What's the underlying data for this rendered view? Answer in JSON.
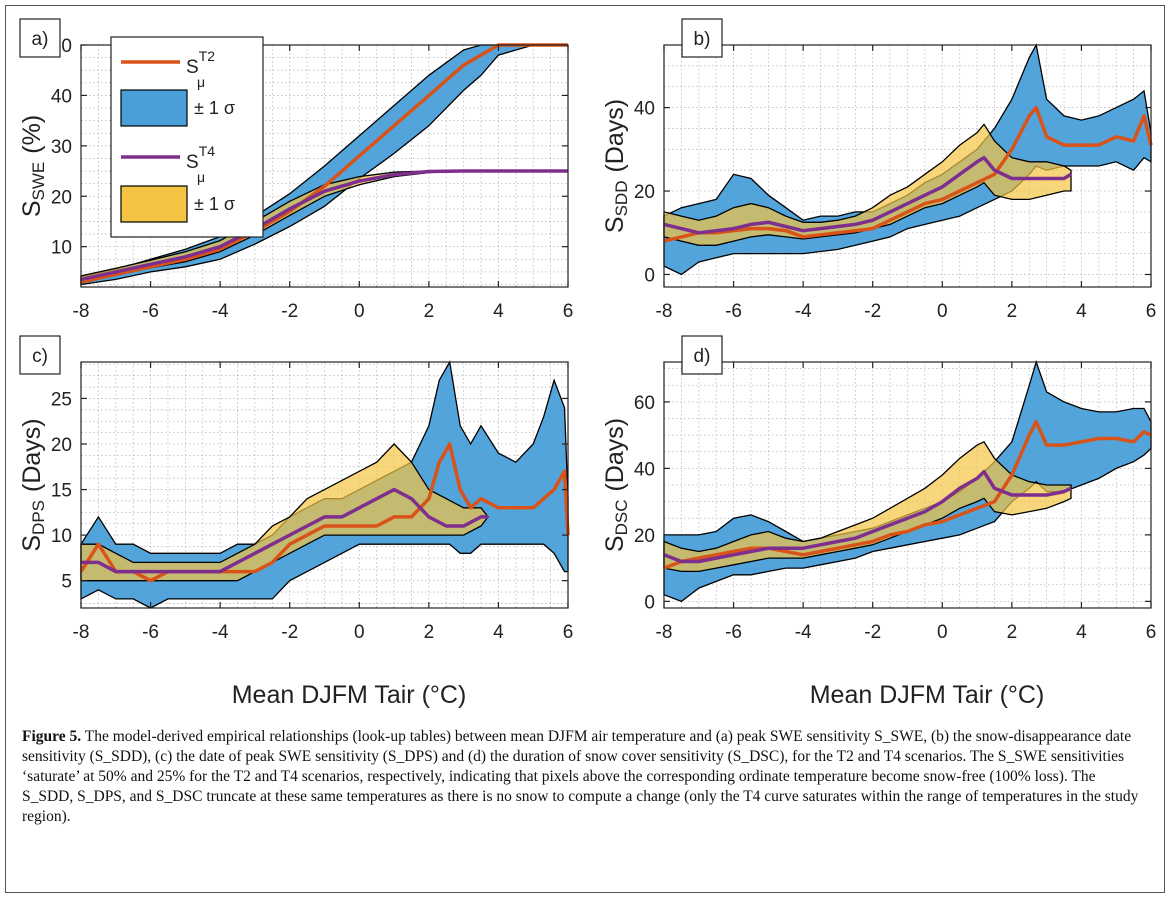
{
  "caption": {
    "label": "Figure 5.",
    "text": "The model-derived empirical relationships (look-up tables) between mean DJFM air temperature and (a) peak SWE sensitivity S_SWE, (b) the snow-disappearance date sensitivity (S_SDD), (c) the date of peak SWE sensitivity (S_DPS) and (d) the duration of snow cover sensitivity (S_DSC), for the T2 and T4 scenarios. The S_SWE sensitivities ‘saturate’ at 50% and 25% for the T2 and T4 scenarios, respectively, indicating that pixels above the corresponding ordinate temperature become snow-free (100% loss). The S_SDD, S_DPS, and S_DSC truncate at these same temperatures as there is no snow to compute a change (only the T4 curve saturates within the range of temperatures in the study region)."
  },
  "xlabel": "Mean DJFM Tair (°C)",
  "legend": {
    "t2_label": "S",
    "t2_sup": "T2",
    "t2_sub": "μ",
    "band_label": "± 1 σ",
    "t4_label": "S",
    "t4_sup": "T4",
    "t4_sub": "μ"
  },
  "colors": {
    "t2_line": "#d95319",
    "t4_line": "#7e2f8e",
    "t2_band": "#4a9fd9",
    "t4_band": "#f5c445",
    "band_edge": "#000000",
    "grid": "#b8b8b8"
  },
  "chart_data": [
    {
      "id": "a",
      "type": "line",
      "panel_label": "a)",
      "ylabel_main": "S",
      "ylabel_sub": "SWE",
      "ylabel_unit": "(%)",
      "xlim": [
        -8,
        6
      ],
      "ylim": [
        2,
        50
      ],
      "xticks": [
        -8,
        -6,
        -4,
        -2,
        0,
        2,
        4,
        6
      ],
      "yticks": [
        10,
        20,
        30,
        40,
        50
      ],
      "grid": "on",
      "legend_position": "top-left",
      "series": [
        {
          "name": "S_μ^T2",
          "x": [
            -8,
            -7,
            -6,
            -5,
            -4,
            -3,
            -2,
            -1,
            0,
            1,
            2,
            3,
            3.5,
            4,
            5,
            6
          ],
          "y": [
            3,
            4.5,
            6,
            7.5,
            9.5,
            13,
            17,
            22,
            28,
            34,
            40,
            46,
            48,
            50,
            50,
            50
          ],
          "lower": [
            2.5,
            3.5,
            5,
            6,
            7.5,
            10.5,
            14,
            18,
            23.5,
            28.5,
            34,
            41,
            44,
            48,
            50,
            50
          ],
          "upper": [
            4,
            5.5,
            7.5,
            9.5,
            12,
            16,
            20.5,
            26,
            32,
            38,
            44,
            49,
            50,
            50,
            50,
            50
          ]
        },
        {
          "name": "S_μ^T4",
          "x": [
            -8,
            -7,
            -6,
            -5,
            -4,
            -3,
            -2,
            -1,
            0,
            1,
            2,
            3,
            4,
            5,
            6
          ],
          "y": [
            3.5,
            5,
            6.5,
            8,
            10,
            13.5,
            17.5,
            21,
            23,
            24.3,
            24.9,
            25,
            25,
            25,
            25
          ],
          "lower": [
            3,
            4.3,
            5.8,
            7,
            9,
            12.3,
            16.2,
            20,
            22.3,
            23.9,
            24.7,
            25,
            25,
            25,
            25
          ],
          "upper": [
            4.2,
            5.7,
            7.3,
            9,
            11.2,
            15,
            19,
            22.3,
            23.9,
            24.8,
            25,
            25,
            25,
            25,
            25
          ]
        }
      ]
    },
    {
      "id": "b",
      "type": "line",
      "panel_label": "b)",
      "ylabel_main": "S",
      "ylabel_sub": "SDD",
      "ylabel_unit": "(Days)",
      "xlim": [
        -8,
        6
      ],
      "ylim": [
        -3,
        55
      ],
      "xticks": [
        -8,
        -6,
        -4,
        -2,
        0,
        2,
        4,
        6
      ],
      "yticks": [
        0,
        20,
        40
      ],
      "grid": "on",
      "series": [
        {
          "name": "S_μ^T2",
          "x": [
            -8,
            -7.5,
            -7,
            -6.5,
            -6,
            -5.5,
            -5,
            -4.5,
            -4,
            -3.5,
            -3,
            -2.5,
            -2,
            -1.5,
            -1,
            -0.5,
            0,
            0.5,
            1,
            1.5,
            2,
            2.5,
            2.7,
            3,
            3.5,
            4,
            4.5,
            5,
            5.5,
            5.8,
            6
          ],
          "y": [
            8,
            9,
            10,
            10,
            10.5,
            11,
            11,
            10.5,
            9,
            9.5,
            10,
            10.5,
            11,
            13,
            15,
            17,
            18,
            20,
            22,
            24,
            30,
            38,
            40,
            33,
            31,
            31,
            31,
            33,
            32,
            38,
            31
          ],
          "lower": [
            2,
            0,
            3,
            4,
            5,
            5,
            5,
            5,
            5,
            5.5,
            6,
            7,
            8,
            9,
            11,
            12,
            13,
            14,
            16,
            18,
            20,
            24,
            26,
            25,
            26,
            26,
            26,
            27,
            25,
            28,
            27
          ],
          "upper": [
            14,
            16,
            17,
            18,
            24,
            23,
            19,
            16,
            13,
            14,
            14,
            15,
            15,
            17,
            19,
            22,
            24,
            27,
            30,
            35,
            42,
            52,
            55,
            42,
            38,
            37,
            38,
            40,
            42,
            44,
            34
          ]
        },
        {
          "name": "S_μ^T4",
          "x": [
            -8,
            -7.5,
            -7,
            -6.5,
            -6,
            -5.5,
            -5,
            -4.5,
            -4,
            -3.5,
            -3,
            -2.5,
            -2,
            -1.5,
            -1,
            -0.5,
            0,
            0.5,
            1,
            1.2,
            1.5,
            2,
            2.5,
            3,
            3.5,
            3.7
          ],
          "y": [
            12,
            11,
            10,
            10.5,
            11,
            12,
            12.5,
            11.5,
            10.5,
            11,
            11.5,
            12,
            13,
            15,
            17,
            19,
            21,
            24,
            27,
            28,
            25,
            23,
            23,
            23,
            23,
            24
          ],
          "lower": [
            9,
            8,
            7,
            7,
            8,
            9,
            9.5,
            9,
            8.5,
            9,
            9.5,
            10,
            11,
            12,
            14,
            16,
            17,
            19,
            21,
            22,
            19,
            18,
            18,
            19,
            20,
            20
          ],
          "upper": [
            15,
            14,
            13,
            14,
            16,
            17,
            16,
            14,
            12.5,
            12.5,
            13,
            14,
            16,
            19,
            21,
            24,
            27,
            31,
            34,
            36,
            32,
            28,
            27,
            27,
            26,
            25
          ]
        }
      ]
    },
    {
      "id": "c",
      "type": "line",
      "panel_label": "c)",
      "ylabel_main": "S",
      "ylabel_sub": "DPS",
      "ylabel_unit": "(Days)",
      "xlim": [
        -8,
        6
      ],
      "ylim": [
        2,
        29
      ],
      "xticks": [
        -8,
        -6,
        -4,
        -2,
        0,
        2,
        4,
        6
      ],
      "yticks": [
        5,
        10,
        15,
        20,
        25
      ],
      "grid": "on",
      "series": [
        {
          "name": "S_μ^T2",
          "x": [
            -8,
            -7.5,
            -7,
            -6.5,
            -6,
            -5.5,
            -5,
            -4.5,
            -4,
            -3.5,
            -3,
            -2.5,
            -2,
            -1.5,
            -1,
            -0.5,
            0,
            0.5,
            1,
            1.5,
            2,
            2.3,
            2.6,
            2.9,
            3.2,
            3.5,
            4,
            4.5,
            5,
            5.3,
            5.6,
            5.9,
            6
          ],
          "y": [
            6,
            9,
            6,
            6,
            5,
            6,
            6,
            6,
            6,
            6,
            6,
            7,
            9,
            10,
            11,
            11,
            11,
            11,
            12,
            12,
            14,
            18,
            20,
            15,
            13,
            14,
            13,
            13,
            13,
            14,
            15,
            17,
            10
          ],
          "lower": [
            3,
            4,
            3,
            3,
            2,
            3,
            3,
            3,
            3,
            3,
            3,
            3,
            5,
            6,
            7,
            8,
            9,
            9,
            9,
            9,
            9,
            9,
            9,
            8,
            8,
            9,
            9,
            9,
            9,
            9,
            8,
            6,
            6
          ],
          "upper": [
            9,
            12,
            9,
            9,
            8,
            8,
            8,
            8,
            8,
            9,
            9,
            10,
            12,
            13,
            14,
            14,
            15,
            16,
            17,
            18,
            22,
            27,
            29,
            22,
            20,
            22,
            19,
            18,
            20,
            23,
            27,
            24,
            14
          ]
        },
        {
          "name": "S_μ^T4",
          "x": [
            -8,
            -7.5,
            -7,
            -6.5,
            -6,
            -5.5,
            -5,
            -4.5,
            -4,
            -3.5,
            -3,
            -2.5,
            -2,
            -1.5,
            -1,
            -0.5,
            0,
            0.5,
            1,
            1.5,
            2,
            2.5,
            3,
            3.5,
            3.7
          ],
          "y": [
            7,
            7,
            6,
            6,
            6,
            6,
            6,
            6,
            6,
            7,
            8,
            9,
            10,
            11,
            12,
            12,
            13,
            14,
            15,
            14,
            12,
            11,
            11,
            12,
            12
          ],
          "lower": [
            5,
            5,
            5,
            5,
            5,
            5,
            5,
            5,
            5,
            5,
            6,
            7,
            8,
            9,
            10,
            10,
            10,
            10,
            10,
            10,
            10,
            10,
            10,
            11,
            12
          ],
          "upper": [
            9,
            9,
            8,
            7,
            7,
            7,
            7,
            7,
            7,
            8,
            9,
            11,
            12,
            14,
            15,
            16,
            17,
            18,
            20,
            18,
            15,
            14,
            13,
            13,
            12
          ]
        }
      ]
    },
    {
      "id": "d",
      "type": "line",
      "panel_label": "d)",
      "ylabel_main": "S",
      "ylabel_sub": "DSC",
      "ylabel_unit": "(Days)",
      "xlim": [
        -8,
        6
      ],
      "ylim": [
        -2,
        72
      ],
      "xticks": [
        -8,
        -6,
        -4,
        -2,
        0,
        2,
        4,
        6
      ],
      "yticks": [
        0,
        20,
        40,
        60
      ],
      "grid": "on",
      "series": [
        {
          "name": "S_μ^T2",
          "x": [
            -8,
            -7.5,
            -7,
            -6.5,
            -6,
            -5.5,
            -5,
            -4.5,
            -4,
            -3.5,
            -3,
            -2.5,
            -2,
            -1.5,
            -1,
            -0.5,
            0,
            0.5,
            1,
            1.5,
            2,
            2.5,
            2.7,
            3,
            3.5,
            4,
            4.5,
            5,
            5.5,
            5.8,
            6
          ],
          "y": [
            10,
            12,
            13,
            14,
            15,
            16,
            16,
            15,
            14,
            15,
            16,
            17,
            18,
            20,
            21,
            23,
            24,
            26,
            28,
            30,
            38,
            50,
            54,
            47,
            47,
            48,
            49,
            49,
            48,
            51,
            50
          ],
          "lower": [
            2,
            0,
            4,
            6,
            8,
            8,
            9,
            10,
            10,
            11,
            12,
            13,
            15,
            16,
            17,
            18,
            19,
            20,
            22,
            24,
            30,
            34,
            36,
            33,
            33,
            35,
            37,
            40,
            42,
            44,
            46
          ],
          "upper": [
            20,
            20,
            20,
            21,
            25,
            26,
            24,
            21,
            18,
            19,
            20,
            21,
            22,
            24,
            26,
            28,
            30,
            33,
            37,
            42,
            48,
            65,
            72,
            63,
            60,
            58,
            57,
            57,
            58,
            58,
            54
          ]
        },
        {
          "name": "S_μ^T4",
          "x": [
            -8,
            -7.5,
            -7,
            -6.5,
            -6,
            -5.5,
            -5,
            -4.5,
            -4,
            -3.5,
            -3,
            -2.5,
            -2,
            -1.5,
            -1,
            -0.5,
            0,
            0.5,
            1,
            1.2,
            1.5,
            2,
            2.5,
            3,
            3.5,
            3.7
          ],
          "y": [
            14,
            12,
            12,
            13,
            14,
            15,
            16,
            16,
            16,
            17,
            18,
            19,
            21,
            23,
            25,
            27,
            30,
            34,
            37,
            39,
            34,
            32,
            32,
            32,
            33,
            34
          ],
          "lower": [
            10,
            9,
            9,
            10,
            11,
            12,
            13,
            13,
            13,
            14,
            15,
            16,
            17,
            19,
            21,
            23,
            25,
            28,
            30,
            31,
            27,
            26,
            27,
            28,
            30,
            31
          ],
          "upper": [
            18,
            16,
            15,
            16,
            18,
            20,
            21,
            19,
            18,
            19,
            21,
            23,
            25,
            28,
            31,
            34,
            38,
            43,
            47,
            48,
            43,
            38,
            36,
            35,
            35,
            35
          ]
        }
      ]
    }
  ]
}
